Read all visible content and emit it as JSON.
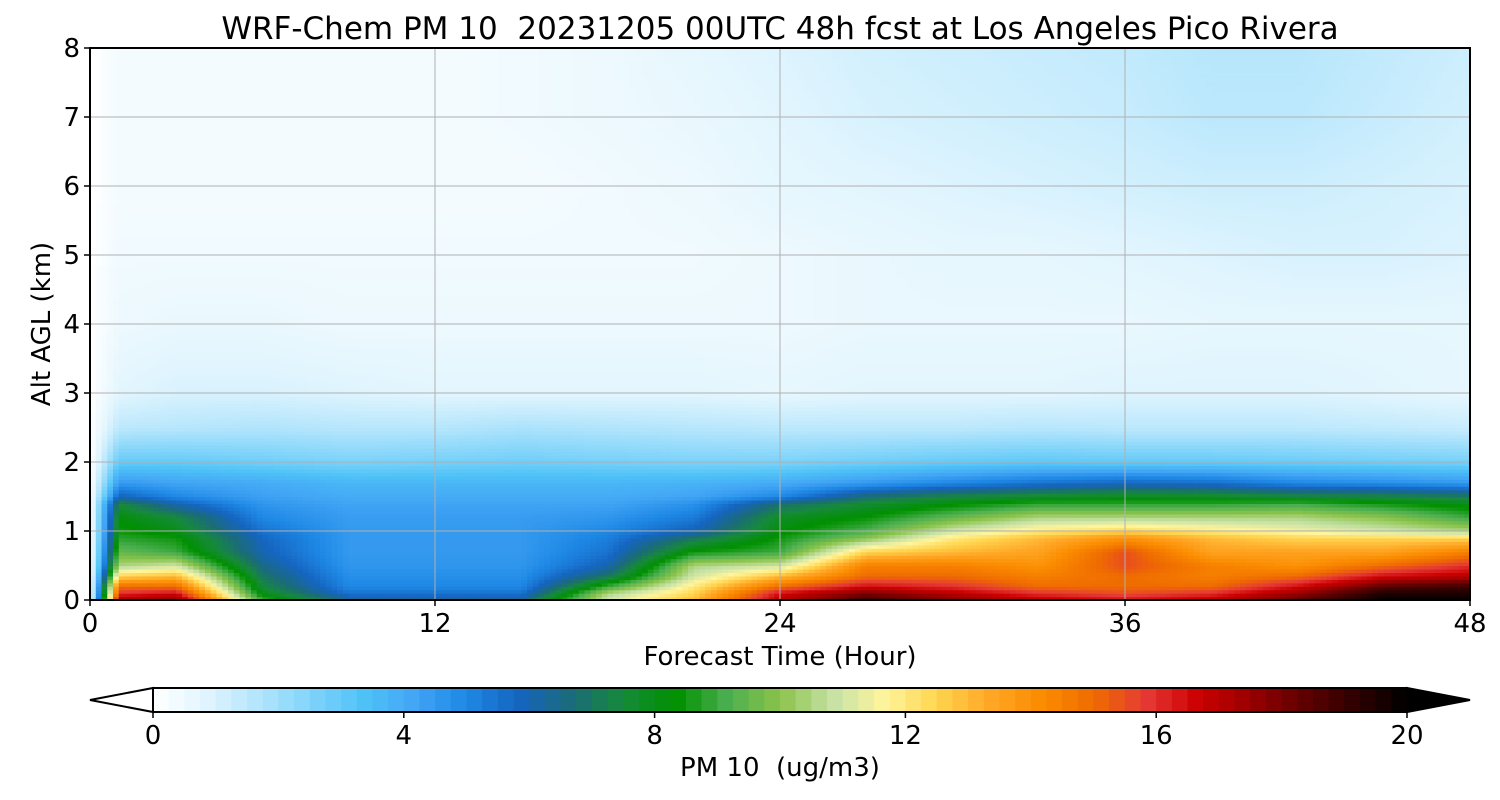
{
  "chart_data": {
    "type": "heatmap",
    "title": "WRF-Chem PM 10  20231205 00UTC 48h fcst at Los Angeles Pico Rivera",
    "xlabel": "Forecast Time (Hour)",
    "ylabel": "Alt AGL (km)",
    "xlim": [
      0,
      48
    ],
    "ylim": [
      0,
      8
    ],
    "xticks": [
      0,
      12,
      24,
      36,
      48
    ],
    "yticks": [
      0,
      1,
      2,
      3,
      4,
      5,
      6,
      7,
      8
    ],
    "grid": true,
    "colorbar": {
      "label": "PM 10  (ug/m3)",
      "range": [
        0,
        20
      ],
      "ticks": [
        0,
        4,
        8,
        12,
        16,
        20
      ],
      "extend": "both",
      "colors": [
        "#ffffff",
        "#e1f5fe",
        "#b3e5fc",
        "#81d4fa",
        "#4fc3f7",
        "#42a5f5",
        "#1e88e5",
        "#1565c0",
        "#1b6b7a",
        "#168a3a",
        "#009000",
        "#4caf50",
        "#8bc34a",
        "#c5e1a5",
        "#fff59d",
        "#ffd54f",
        "#ffa726",
        "#fb8c00",
        "#ef6c00",
        "#e53935",
        "#cc0000",
        "#990000",
        "#600000",
        "#300000",
        "#000000"
      ]
    },
    "heights_km": [
      0,
      0.1,
      0.2,
      0.35,
      0.5,
      0.7,
      0.9,
      1.0,
      1.2,
      1.4,
      1.5,
      1.7,
      2.0,
      2.5,
      3.0,
      4.0,
      5.0,
      6.0,
      7.0,
      8.0
    ],
    "times_h": [
      0,
      1,
      3,
      6,
      9,
      12,
      15,
      18,
      21,
      24,
      27,
      30,
      33,
      36,
      39,
      42,
      45,
      48
    ],
    "values": [
      [
        0.0,
        17.5,
        18.0,
        9.0,
        6.5,
        6.5,
        6.5,
        11.0,
        13.0,
        17.0,
        19.0,
        18.0,
        17.0,
        16.5,
        17.0,
        18.5,
        20.0,
        20.0
      ],
      [
        0.0,
        16.0,
        16.5,
        8.0,
        5.5,
        5.5,
        5.5,
        10.5,
        12.5,
        16.5,
        18.0,
        17.0,
        16.0,
        15.5,
        16.0,
        17.5,
        19.5,
        19.5
      ],
      [
        0.0,
        15.0,
        15.0,
        7.5,
        5.0,
        5.0,
        5.0,
        9.0,
        12.0,
        15.0,
        16.5,
        16.0,
        15.0,
        15.0,
        15.0,
        16.5,
        18.5,
        19.0
      ],
      [
        0.0,
        12.5,
        13.0,
        7.0,
        4.8,
        4.8,
        4.8,
        7.0,
        11.0,
        13.0,
        15.0,
        15.0,
        14.5,
        15.0,
        14.5,
        15.0,
        16.5,
        17.0
      ],
      [
        0.0,
        10.5,
        11.0,
        6.5,
        4.6,
        4.6,
        4.6,
        6.0,
        10.5,
        11.0,
        14.5,
        14.5,
        14.0,
        15.5,
        14.5,
        14.0,
        15.0,
        16.0
      ],
      [
        0.0,
        9.5,
        9.0,
        6.0,
        4.5,
        4.5,
        4.5,
        5.5,
        8.5,
        9.0,
        12.5,
        13.0,
        13.5,
        15.5,
        13.5,
        13.5,
        13.5,
        14.5
      ],
      [
        0.0,
        8.8,
        8.5,
        5.8,
        4.5,
        4.5,
        4.5,
        5.2,
        7.0,
        8.5,
        10.0,
        12.0,
        13.0,
        14.0,
        13.0,
        12.5,
        12.5,
        12.5
      ],
      [
        0.0,
        8.5,
        8.0,
        5.5,
        4.5,
        4.5,
        4.5,
        5.0,
        6.0,
        8.2,
        9.2,
        11.0,
        12.0,
        12.5,
        12.0,
        11.5,
        11.0,
        10.5
      ],
      [
        0.0,
        8.2,
        7.5,
        5.0,
        4.4,
        4.4,
        4.4,
        4.6,
        5.3,
        7.8,
        8.4,
        9.5,
        10.5,
        10.5,
        10.5,
        10.5,
        10.0,
        9.0
      ],
      [
        0.0,
        7.5,
        6.0,
        4.6,
        4.2,
        4.2,
        4.2,
        4.2,
        4.7,
        6.8,
        7.6,
        8.2,
        8.8,
        8.8,
        8.8,
        9.0,
        8.5,
        8.0
      ],
      [
        0.0,
        6.0,
        5.0,
        4.3,
        4.0,
        4.0,
        4.0,
        4.0,
        4.2,
        5.0,
        6.8,
        7.5,
        7.8,
        8.0,
        7.9,
        7.6,
        7.5,
        7.2
      ],
      [
        0.0,
        4.5,
        4.2,
        4.0,
        3.7,
        3.7,
        3.7,
        3.7,
        3.8,
        4.0,
        4.5,
        5.0,
        5.5,
        5.8,
        5.6,
        5.0,
        4.8,
        4.5
      ],
      [
        0.0,
        3.0,
        3.0,
        2.8,
        2.6,
        2.7,
        2.8,
        2.7,
        2.6,
        2.6,
        2.8,
        3.0,
        3.1,
        3.0,
        3.0,
        2.9,
        2.8,
        2.7
      ],
      [
        0.0,
        1.5,
        1.6,
        1.7,
        1.6,
        1.6,
        1.8,
        1.7,
        1.6,
        1.5,
        1.5,
        1.5,
        1.6,
        1.5,
        1.5,
        1.5,
        1.4,
        1.3
      ],
      [
        0.0,
        0.8,
        1.0,
        1.0,
        0.9,
        0.8,
        0.8,
        0.8,
        0.8,
        0.7,
        0.8,
        0.8,
        0.8,
        0.9,
        0.9,
        0.9,
        0.8,
        0.7
      ],
      [
        0.0,
        0.5,
        0.6,
        0.6,
        0.5,
        0.5,
        0.5,
        0.5,
        0.5,
        0.5,
        0.6,
        0.6,
        0.6,
        0.6,
        0.7,
        0.7,
        0.7,
        0.7
      ],
      [
        0.0,
        0.4,
        0.4,
        0.4,
        0.4,
        0.4,
        0.4,
        0.4,
        0.4,
        0.5,
        0.6,
        0.7,
        0.7,
        0.8,
        0.9,
        1.0,
        1.0,
        0.9
      ],
      [
        0.0,
        0.3,
        0.3,
        0.3,
        0.3,
        0.3,
        0.3,
        0.4,
        0.5,
        0.7,
        0.8,
        0.9,
        1.0,
        1.1,
        1.2,
        1.2,
        1.1,
        1.0
      ],
      [
        0.0,
        0.3,
        0.3,
        0.3,
        0.3,
        0.3,
        0.4,
        0.5,
        0.6,
        0.8,
        1.0,
        1.1,
        1.2,
        1.3,
        1.5,
        1.5,
        1.3,
        1.1
      ],
      [
        0.0,
        0.3,
        0.3,
        0.3,
        0.3,
        0.3,
        0.4,
        0.5,
        0.7,
        0.9,
        1.1,
        1.2,
        1.3,
        1.4,
        1.6,
        1.6,
        1.4,
        1.2
      ]
    ]
  }
}
